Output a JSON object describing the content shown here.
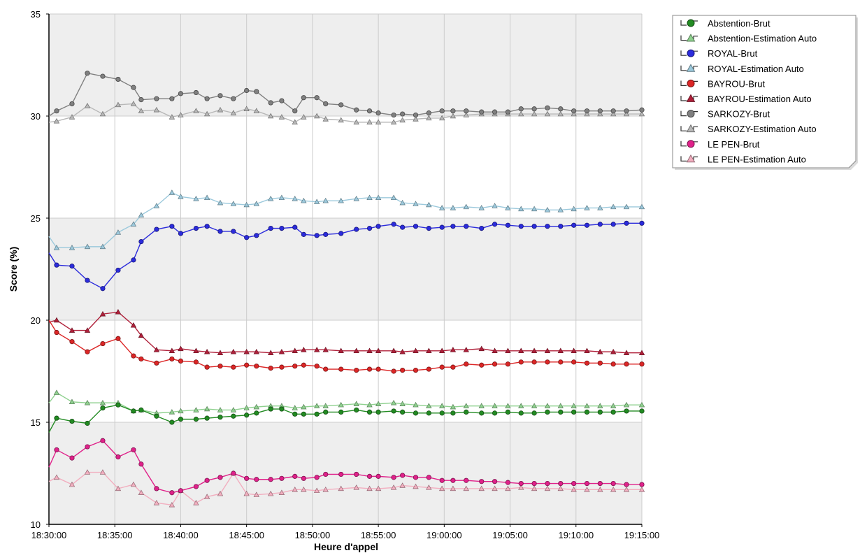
{
  "chart_data": {
    "type": "line",
    "title": "",
    "xlabel": "Heure d'appel",
    "ylabel": "Score (%)",
    "ylim": [
      10,
      35
    ],
    "xlim": [
      "18:30:00",
      "19:15:00"
    ],
    "x_ticks": [
      "18:30:00",
      "18:35:00",
      "18:40:00",
      "18:45:00",
      "18:50:00",
      "18:55:00",
      "19:00:00",
      "19:05:00",
      "19:10:00",
      "19:15:00"
    ],
    "y_ticks": [
      "10",
      "15",
      "20",
      "25",
      "30",
      "35"
    ],
    "grid": true,
    "legend_position": "right",
    "x": [
      "18:30:00",
      "18:30:35",
      "18:31:45",
      "18:32:55",
      "18:34:05",
      "18:35:15",
      "18:36:25",
      "18:37:00",
      "18:38:10",
      "18:39:20",
      "18:40:00",
      "18:41:10",
      "18:42:00",
      "18:43:00",
      "18:44:00",
      "18:45:00",
      "18:45:45",
      "18:46:50",
      "18:47:40",
      "18:48:40",
      "18:49:20",
      "18:50:20",
      "18:51:00",
      "18:52:10",
      "18:53:20",
      "18:54:20",
      "18:55:00",
      "18:56:10",
      "18:56:50",
      "18:57:50",
      "18:58:50",
      "18:59:50",
      "19:00:40",
      "19:01:40",
      "19:02:50",
      "19:03:50",
      "19:04:50",
      "19:05:50",
      "19:06:50",
      "19:07:50",
      "19:08:50",
      "19:09:50",
      "19:10:50",
      "19:11:50",
      "19:12:50",
      "19:13:50",
      "19:15:00"
    ],
    "series": [
      {
        "name": "Abstention-Brut",
        "color": "#228b22",
        "marker": "circle",
        "values": [
          14.5,
          15.2,
          15.05,
          14.95,
          15.7,
          15.85,
          15.55,
          15.6,
          15.3,
          15.0,
          15.15,
          15.15,
          15.2,
          15.25,
          15.3,
          15.35,
          15.45,
          15.65,
          15.65,
          15.4,
          15.4,
          15.4,
          15.5,
          15.5,
          15.6,
          15.5,
          15.5,
          15.55,
          15.5,
          15.45,
          15.45,
          15.45,
          15.45,
          15.5,
          15.45,
          15.45,
          15.5,
          15.45,
          15.45,
          15.5,
          15.5,
          15.5,
          15.5,
          15.5,
          15.5,
          15.55,
          15.55
        ]
      },
      {
        "name": "Abstention-Estimation Auto",
        "color": "#8fd18f",
        "marker": "triangle",
        "values": [
          15.95,
          16.45,
          16.0,
          15.95,
          15.95,
          15.95,
          15.55,
          15.6,
          15.45,
          15.5,
          15.55,
          15.6,
          15.65,
          15.6,
          15.6,
          15.7,
          15.75,
          15.8,
          15.8,
          15.7,
          15.75,
          15.8,
          15.8,
          15.85,
          15.9,
          15.85,
          15.9,
          15.95,
          15.9,
          15.85,
          15.8,
          15.8,
          15.75,
          15.8,
          15.8,
          15.8,
          15.8,
          15.8,
          15.8,
          15.8,
          15.8,
          15.8,
          15.8,
          15.8,
          15.8,
          15.85,
          15.85
        ]
      },
      {
        "name": "ROYAL-Brut",
        "color": "#2b2bdc",
        "marker": "circle",
        "values": [
          23.3,
          22.7,
          22.65,
          21.95,
          21.55,
          22.45,
          22.95,
          23.85,
          24.45,
          24.6,
          24.25,
          24.5,
          24.6,
          24.35,
          24.35,
          24.05,
          24.15,
          24.5,
          24.5,
          24.55,
          24.2,
          24.15,
          24.2,
          24.25,
          24.45,
          24.5,
          24.6,
          24.7,
          24.55,
          24.6,
          24.5,
          24.55,
          24.6,
          24.6,
          24.5,
          24.7,
          24.65,
          24.6,
          24.6,
          24.6,
          24.6,
          24.65,
          24.65,
          24.7,
          24.7,
          24.75,
          24.75
        ]
      },
      {
        "name": "ROYAL-Estimation Auto",
        "color": "#9cc9dc",
        "marker": "triangle",
        "values": [
          24.1,
          23.55,
          23.55,
          23.6,
          23.6,
          24.3,
          24.7,
          25.15,
          25.6,
          26.25,
          26.05,
          25.95,
          26.0,
          25.75,
          25.7,
          25.65,
          25.7,
          25.95,
          26.0,
          25.95,
          25.85,
          25.8,
          25.85,
          25.85,
          25.95,
          26.0,
          26.0,
          26.0,
          25.75,
          25.7,
          25.65,
          25.5,
          25.5,
          25.55,
          25.5,
          25.6,
          25.5,
          25.45,
          25.45,
          25.4,
          25.4,
          25.45,
          25.5,
          25.5,
          25.55,
          25.55,
          25.55
        ]
      },
      {
        "name": "BAYROU-Brut",
        "color": "#dc2626",
        "marker": "circle",
        "values": [
          20.0,
          19.4,
          18.95,
          18.45,
          18.85,
          19.1,
          18.25,
          18.1,
          17.9,
          18.1,
          18.0,
          17.95,
          17.7,
          17.75,
          17.7,
          17.8,
          17.75,
          17.65,
          17.7,
          17.75,
          17.8,
          17.75,
          17.6,
          17.6,
          17.55,
          17.6,
          17.6,
          17.5,
          17.55,
          17.55,
          17.6,
          17.7,
          17.7,
          17.85,
          17.8,
          17.85,
          17.85,
          17.95,
          17.95,
          17.95,
          17.95,
          17.95,
          17.9,
          17.9,
          17.85,
          17.85,
          17.85
        ]
      },
      {
        "name": "BAYROU-Estimation Auto",
        "color": "#b0203a",
        "marker": "triangle",
        "values": [
          19.9,
          20.0,
          19.5,
          19.5,
          20.3,
          20.4,
          19.75,
          19.25,
          18.55,
          18.5,
          18.6,
          18.5,
          18.45,
          18.4,
          18.45,
          18.45,
          18.45,
          18.4,
          18.45,
          18.5,
          18.55,
          18.55,
          18.55,
          18.5,
          18.5,
          18.5,
          18.5,
          18.5,
          18.45,
          18.5,
          18.5,
          18.5,
          18.55,
          18.55,
          18.6,
          18.5,
          18.5,
          18.5,
          18.5,
          18.5,
          18.5,
          18.5,
          18.5,
          18.45,
          18.45,
          18.4,
          18.4
        ]
      },
      {
        "name": "SARKOZY-Brut",
        "color": "#808080",
        "marker": "circle",
        "values": [
          30.0,
          30.25,
          30.6,
          32.1,
          31.95,
          31.8,
          31.4,
          30.8,
          30.85,
          30.85,
          31.1,
          31.15,
          30.85,
          31.0,
          30.85,
          31.25,
          31.2,
          30.65,
          30.75,
          30.25,
          30.9,
          30.9,
          30.6,
          30.55,
          30.3,
          30.25,
          30.15,
          30.05,
          30.1,
          30.05,
          30.15,
          30.25,
          30.25,
          30.25,
          30.2,
          30.2,
          30.2,
          30.35,
          30.35,
          30.4,
          30.35,
          30.25,
          30.25,
          30.25,
          30.25,
          30.25,
          30.3
        ]
      },
      {
        "name": "SARKOZY-Estimation Auto",
        "color": "#b8b8b8",
        "marker": "triangle",
        "values": [
          29.7,
          29.75,
          29.95,
          30.5,
          30.1,
          30.55,
          30.6,
          30.25,
          30.3,
          29.95,
          30.05,
          30.25,
          30.1,
          30.3,
          30.15,
          30.35,
          30.25,
          30.0,
          29.95,
          29.7,
          29.95,
          30.0,
          29.85,
          29.8,
          29.7,
          29.7,
          29.7,
          29.7,
          29.8,
          29.85,
          29.9,
          29.9,
          30.0,
          30.05,
          30.1,
          30.1,
          30.1,
          30.1,
          30.1,
          30.1,
          30.1,
          30.1,
          30.1,
          30.1,
          30.1,
          30.1,
          30.1
        ]
      },
      {
        "name": "LE PEN-Brut",
        "color": "#e0218a",
        "marker": "circle",
        "values": [
          12.8,
          13.65,
          13.25,
          13.8,
          14.1,
          13.3,
          13.65,
          12.95,
          11.75,
          11.55,
          11.65,
          11.85,
          12.15,
          12.3,
          12.5,
          12.25,
          12.2,
          12.2,
          12.25,
          12.35,
          12.25,
          12.3,
          12.45,
          12.45,
          12.45,
          12.35,
          12.35,
          12.3,
          12.4,
          12.3,
          12.3,
          12.15,
          12.15,
          12.15,
          12.1,
          12.1,
          12.05,
          12.0,
          12.0,
          12.0,
          12.0,
          12.0,
          12.0,
          12.0,
          12.0,
          11.95,
          11.95
        ]
      },
      {
        "name": "LE PEN-Estimation Auto",
        "color": "#f2aebf",
        "marker": "triangle",
        "values": [
          12.1,
          12.3,
          11.95,
          12.55,
          12.55,
          11.75,
          11.95,
          11.55,
          11.05,
          10.95,
          11.65,
          11.05,
          11.35,
          11.5,
          12.5,
          11.5,
          11.45,
          11.5,
          11.55,
          11.7,
          11.7,
          11.65,
          11.7,
          11.75,
          11.8,
          11.75,
          11.75,
          11.8,
          11.9,
          11.85,
          11.8,
          11.75,
          11.75,
          11.75,
          11.75,
          11.75,
          11.75,
          11.8,
          11.75,
          11.75,
          11.75,
          11.7,
          11.7,
          11.7,
          11.7,
          11.7,
          11.7
        ]
      }
    ]
  }
}
